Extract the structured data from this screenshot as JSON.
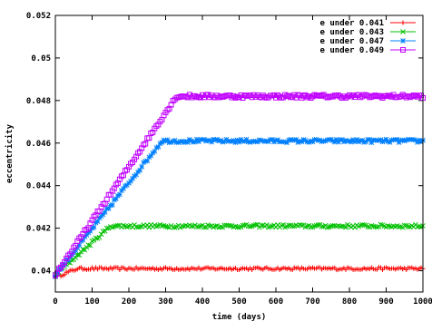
{
  "chart_data": {
    "type": "scatter",
    "xlabel": "time (days)",
    "ylabel": "eccentricity",
    "xlim": [
      0,
      1000
    ],
    "ylim": [
      0.039,
      0.052
    ],
    "x_ticks": [
      "0",
      "100",
      "200",
      "300",
      "400",
      "500",
      "600",
      "700",
      "800",
      "900",
      "1000"
    ],
    "y_ticks": [
      "0.04",
      "0.042",
      "0.044",
      "0.046",
      "0.048",
      "0.05",
      "0.052"
    ],
    "legend_position": "top-right",
    "series": [
      {
        "name": "e under 0.041",
        "color": "#ff0000",
        "marker": "plus",
        "shape": {
          "start": 0.0397,
          "plateau": 0.0401,
          "t_plateau": 60,
          "noise": 6e-05
        }
      },
      {
        "name": "e under 0.043",
        "color": "#00c000",
        "marker": "cross",
        "shape": {
          "start": 0.0398,
          "plateau": 0.0421,
          "t_plateau": 150,
          "noise": 7e-05
        }
      },
      {
        "name": "e under 0.047",
        "color": "#0080ff",
        "marker": "star",
        "shape": {
          "start": 0.0398,
          "plateau": 0.0461,
          "t_plateau": 290,
          "noise": 8e-05
        }
      },
      {
        "name": "e under 0.049",
        "color": "#c000ff",
        "marker": "square",
        "shape": {
          "start": 0.0398,
          "plateau": 0.0482,
          "t_plateau": 330,
          "noise": 8e-05
        }
      }
    ]
  }
}
